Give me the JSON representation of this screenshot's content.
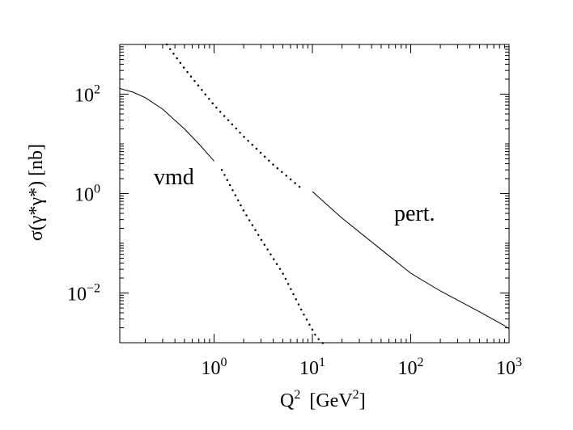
{
  "chart_data": {
    "type": "line",
    "xscale": "log",
    "yscale": "log",
    "xlim": [
      0.11,
      1000
    ],
    "ylim": [
      0.001,
      1000
    ],
    "xlabel": {
      "main": "Q",
      "sup": "2",
      "unit_prefix": "[GeV",
      "unit_sup": "2",
      "unit_suffix": "]"
    },
    "ylabel": "σ(γ*γ*)  [nb]",
    "x_ticks": [
      {
        "value": 1,
        "base": "10",
        "exp": "0"
      },
      {
        "value": 10,
        "base": "10",
        "exp": "1"
      },
      {
        "value": 100,
        "base": "10",
        "exp": "2"
      },
      {
        "value": 1000,
        "base": "10",
        "exp": "3"
      }
    ],
    "y_ticks": [
      {
        "value": 0.01,
        "base": "10",
        "exp": "−2"
      },
      {
        "value": 1,
        "base": "10",
        "exp": "0"
      },
      {
        "value": 100,
        "base": "10",
        "exp": "2"
      }
    ],
    "annotations": [
      "vmd",
      "pert."
    ],
    "series": [
      {
        "style": "solid",
        "points": [
          [
            0.11,
            130
          ],
          [
            0.15,
            110
          ],
          [
            0.2,
            85
          ],
          [
            0.3,
            50
          ],
          [
            0.5,
            20
          ],
          [
            0.7,
            10
          ],
          [
            1.0,
            4.5
          ]
        ]
      },
      {
        "style": "dotted",
        "points": [
          [
            1.2,
            3.0
          ],
          [
            2.0,
            0.45
          ],
          [
            3.0,
            0.12
          ],
          [
            5.0,
            0.025
          ],
          [
            8.0,
            0.004
          ],
          [
            11.0,
            0.0013
          ],
          [
            13.0,
            0.00095
          ]
        ]
      },
      {
        "style": "dotted",
        "points": [
          [
            0.33,
            1000
          ],
          [
            0.5,
            330
          ],
          [
            1.0,
            60
          ],
          [
            2.0,
            14
          ],
          [
            4.0,
            3.8
          ],
          [
            8.0,
            1.2
          ]
        ]
      },
      {
        "style": "solid",
        "points": [
          [
            10,
            1.1
          ],
          [
            20,
            0.32
          ],
          [
            50,
            0.075
          ],
          [
            100,
            0.025
          ],
          [
            200,
            0.011
          ],
          [
            500,
            0.0042
          ],
          [
            900,
            0.0022
          ],
          [
            1000,
            0.0019
          ]
        ]
      }
    ]
  }
}
